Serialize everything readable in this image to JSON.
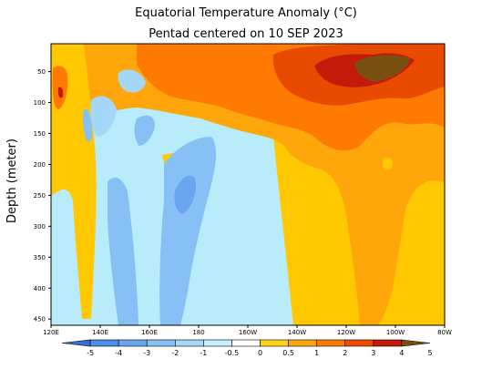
{
  "title": "Equatorial Temperature Anomaly (°C)",
  "subtitle": "Pentad centered on 10 SEP 2023",
  "chart_data": {
    "type": "heatmap",
    "title": "Equatorial Temperature Anomaly (°C)",
    "subtitle": "Pentad centered on 10 SEP 2023",
    "xlabel": "",
    "ylabel": "Depth (meter)",
    "x_ticks": [
      "120E",
      "140E",
      "160E",
      "180",
      "160W",
      "140W",
      "120W",
      "100W",
      "80W"
    ],
    "x_tick_lon": [
      120,
      140,
      160,
      180,
      200,
      220,
      240,
      260,
      280
    ],
    "xlim": [
      120,
      280
    ],
    "y_ticks": [
      50,
      100,
      150,
      200,
      250,
      300,
      350,
      400,
      450
    ],
    "ylim": [
      460,
      5
    ],
    "colorbar": {
      "levels": [
        "-5",
        "-4",
        "-3",
        "-2",
        "-1",
        "-0.5",
        "0",
        "0.5",
        "1",
        "2",
        "3",
        "4",
        "5"
      ],
      "colors": [
        "#3a6fd1",
        "#4d8ee6",
        "#6aa6ef",
        "#86c0f4",
        "#a5d8f8",
        "#c6eefc",
        "#ffffff",
        "#ffd21a",
        "#ffa60a",
        "#ff7a00",
        "#ee4a00",
        "#c41a0a",
        "#7a5010"
      ]
    },
    "regions": [
      {
        "anomaly": "-0.5 to 0",
        "location": "west/central Pacific below ~150 m"
      },
      {
        "anomaly": "-2 to -1",
        "location": "cool tongues near 140E–180, 150–450 m"
      },
      {
        "anomaly": "0.5 to 2",
        "location": "east of 160W, 150–450 m"
      },
      {
        "anomaly": "2 to 3",
        "location": "upper 150 m, 160E–80W"
      },
      {
        "anomaly": "3 to 5",
        "location": "near 120W–100W, 30–80 m"
      }
    ]
  }
}
